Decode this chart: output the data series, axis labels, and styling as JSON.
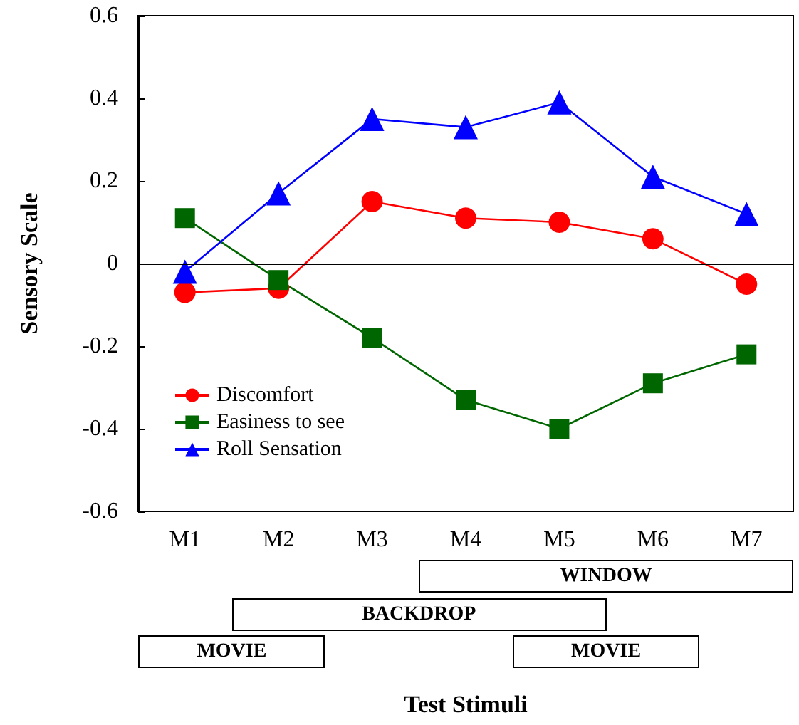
{
  "chart_data": {
    "type": "line",
    "ylabel": "Sensory Scale",
    "categories": [
      "M1",
      "M2",
      "M3",
      "M4",
      "M5",
      "M6",
      "M7"
    ],
    "series": [
      {
        "name": "Discomfort",
        "color": "#ff0000",
        "marker": "circle",
        "values": [
          -0.07,
          -0.06,
          0.15,
          0.11,
          0.1,
          0.06,
          -0.05
        ]
      },
      {
        "name": "Easiness to see",
        "color": "#006600",
        "marker": "square",
        "values": [
          0.11,
          -0.04,
          -0.18,
          -0.33,
          -0.4,
          -0.29,
          -0.22
        ]
      },
      {
        "name": "Roll Sensation",
        "color": "#0000ff",
        "marker": "triangle",
        "values": [
          -0.02,
          0.17,
          0.35,
          0.33,
          0.39,
          0.21,
          0.12
        ]
      }
    ],
    "ylim": [
      -0.6,
      0.6
    ],
    "yticks": [
      -0.6,
      -0.4,
      -0.2,
      0,
      0.2,
      0.4,
      0.6
    ],
    "ref_lines": [
      {
        "axis": "y",
        "value": 0,
        "color": "#000000"
      }
    ],
    "annotations": [
      "WINDOW",
      "BACKDROP",
      "MOVIE",
      "MOVIE",
      "Test Stimuli"
    ],
    "grid": false,
    "legend": "bottom left"
  }
}
